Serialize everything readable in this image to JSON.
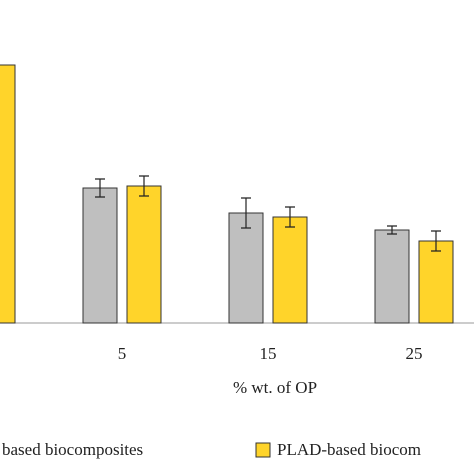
{
  "chart_data": {
    "type": "bar",
    "x_label": "% wt. of OP",
    "categories": [
      null,
      "5",
      "15",
      "25"
    ],
    "series": [
      {
        "name": "based biocomposites",
        "color": "#bfbfbf",
        "values": [
          null,
          135,
          110,
          93
        ],
        "errors": [
          null,
          9,
          15,
          4
        ]
      },
      {
        "name": "PLAD-based biocom",
        "color": "#ffd42a",
        "values": [
          258,
          137,
          106,
          82
        ],
        "errors": [
          null,
          10,
          10,
          10
        ]
      }
    ],
    "ylim": [
      0,
      270
    ]
  }
}
